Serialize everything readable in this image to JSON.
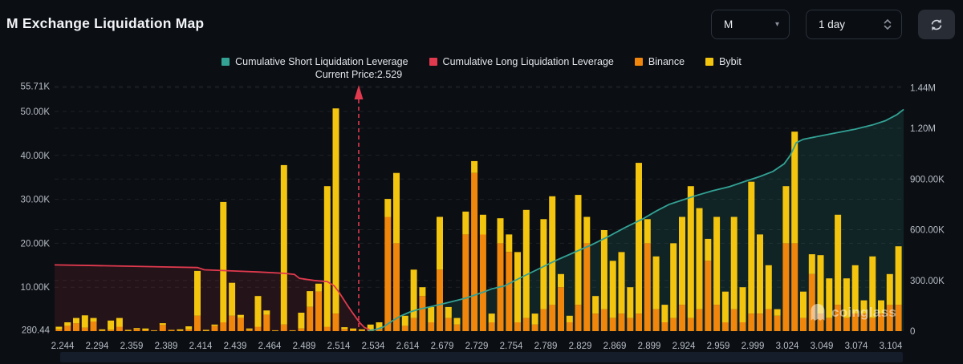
{
  "header": {
    "title": "M Exchange Liquidation Map"
  },
  "controls": {
    "symbol_select": {
      "value": "M"
    },
    "interval_select": {
      "value": "1 day"
    },
    "refresh_button": "refresh"
  },
  "legend": {
    "items": [
      {
        "label": "Cumulative Short Liquidation Leverage",
        "color": "#33a295"
      },
      {
        "label": "Cumulative Long Liquidation Leverage",
        "color": "#e13a4e"
      },
      {
        "label": "Binance",
        "color": "#f0860b"
      },
      {
        "label": "Bybit",
        "color": "#f3c50e"
      }
    ]
  },
  "watermark": {
    "text": "coinglass"
  },
  "chart_data": {
    "type": "bar",
    "title": "M Exchange Liquidation Map",
    "annotation": {
      "label": "Current Price:2.529",
      "price": 2.529
    },
    "colors": {
      "binance": "#f0860b",
      "bybit": "#f3c50e",
      "short_line": "#33a295",
      "long_line": "#e13a4e"
    },
    "y_axis_left": {
      "title": "liquidation value (K USD)",
      "labels": [
        "55.71K",
        "50.00K",
        "40.00K",
        "30.00K",
        "20.00K",
        "10.00K",
        "280.44"
      ],
      "values_k": [
        55.71,
        50,
        40,
        30,
        20,
        10,
        0.28
      ]
    },
    "y_axis_right": {
      "title": "cumulative leverage",
      "labels": [
        "1.44M",
        "1.20M",
        "900.00K",
        "600.00K",
        "300.00K",
        "0"
      ],
      "values_k": [
        1440,
        1200,
        900,
        600,
        300,
        0
      ]
    },
    "x_axis": {
      "labels": [
        "2.244",
        "2.294",
        "2.359",
        "2.389",
        "2.414",
        "2.439",
        "2.464",
        "2.489",
        "2.514",
        "2.534",
        "2.614",
        "2.679",
        "2.729",
        "2.754",
        "2.789",
        "2.829",
        "2.869",
        "2.899",
        "2.924",
        "2.959",
        "2.999",
        "3.024",
        "3.049",
        "3.074",
        "3.104"
      ]
    },
    "bar_series": [
      "Binance",
      "Bybit"
    ],
    "bars_k": [
      [
        0.4,
        0.6
      ],
      [
        1.2,
        0.8
      ],
      [
        1.8,
        1.2
      ],
      [
        0.8,
        2.8
      ],
      [
        2.2,
        0.8
      ],
      [
        0.1,
        0.3
      ],
      [
        0.3,
        2.1
      ],
      [
        1.0,
        2.0
      ],
      [
        0.1,
        0.2
      ],
      [
        0.5,
        0.2
      ],
      [
        0.2,
        0.4
      ],
      [
        0.1,
        0.1
      ],
      [
        1.4,
        0.4
      ],
      [
        0.2,
        0.1
      ],
      [
        0.1,
        0.3
      ],
      [
        0.4,
        0.7
      ],
      [
        3.5,
        10.2
      ],
      [
        0.1,
        0.2
      ],
      [
        1.2,
        0.3
      ],
      [
        2.0,
        27.4
      ],
      [
        3.5,
        7.5
      ],
      [
        3.0,
        0.7
      ],
      [
        0.3,
        0.3
      ],
      [
        1.0,
        7.0
      ],
      [
        3.7,
        1.0
      ],
      [
        0.1,
        0.1
      ],
      [
        1.5,
        36.3
      ],
      [
        0.1,
        0.1
      ],
      [
        0.6,
        3.6
      ],
      [
        5.5,
        3.6
      ],
      [
        9.0,
        1.8
      ],
      [
        1.0,
        32.0
      ],
      [
        4.0,
        46.7
      ],
      [
        0.5,
        0.4
      ],
      [
        0.2,
        0.4
      ],
      [
        0.1,
        0.3
      ],
      [
        0.3,
        1.2
      ],
      [
        0.5,
        1.5
      ],
      [
        26.0,
        4.1
      ],
      [
        20.0,
        16.0
      ],
      [
        1.2,
        2.3
      ],
      [
        3.0,
        11.0
      ],
      [
        8.0,
        2.0
      ],
      [
        2.0,
        3.5
      ],
      [
        14.0,
        12.0
      ],
      [
        3.0,
        2.5
      ],
      [
        1.5,
        1.5
      ],
      [
        22.0,
        5.2
      ],
      [
        36.0,
        2.7
      ],
      [
        22.0,
        4.5
      ],
      [
        2.0,
        2.0
      ],
      [
        20.0,
        5.7
      ],
      [
        18.0,
        4.0
      ],
      [
        2.0,
        16.0
      ],
      [
        3.0,
        24.6
      ],
      [
        1.5,
        2.5
      ],
      [
        5.0,
        20.5
      ],
      [
        6.0,
        24.7
      ],
      [
        10.0,
        3.0
      ],
      [
        2.0,
        1.5
      ],
      [
        6.0,
        25.0
      ],
      [
        20.0,
        6.0
      ],
      [
        4.0,
        4.0
      ],
      [
        5.0,
        18.0
      ],
      [
        3.0,
        13.0
      ],
      [
        4.0,
        14.0
      ],
      [
        3.0,
        7.0
      ],
      [
        4.0,
        34.3
      ],
      [
        20.0,
        5.5
      ],
      [
        5.0,
        12.0
      ],
      [
        2.0,
        4.0
      ],
      [
        3.0,
        17.0
      ],
      [
        6.0,
        20.0
      ],
      [
        3.0,
        30.0
      ],
      [
        5.0,
        23.0
      ],
      [
        16.0,
        5.0
      ],
      [
        6.0,
        20.0
      ],
      [
        2.0,
        7.0
      ],
      [
        5.0,
        21.0
      ],
      [
        2.0,
        8.0
      ],
      [
        4.0,
        30.0
      ],
      [
        4.0,
        18.0
      ],
      [
        5.0,
        10.0
      ],
      [
        3.5,
        1.5
      ],
      [
        20.0,
        13.0
      ],
      [
        20.0,
        25.4
      ],
      [
        3.0,
        6.0
      ],
      [
        13.0,
        4.5
      ],
      [
        4.0,
        13.3
      ],
      [
        3.0,
        9.0
      ],
      [
        6.0,
        20.5
      ],
      [
        3.0,
        9.0
      ],
      [
        4.0,
        11.0
      ],
      [
        4.0,
        3.0
      ],
      [
        3.0,
        14.0
      ],
      [
        4.0,
        3.0
      ],
      [
        6.0,
        7.0
      ],
      [
        6.0,
        13.3
      ]
    ],
    "cumulative_long_k": [
      [
        -0.5,
        392
      ],
      [
        4,
        388
      ],
      [
        8,
        384
      ],
      [
        12,
        380
      ],
      [
        16,
        376
      ],
      [
        16.8,
        363
      ],
      [
        20,
        356
      ],
      [
        23,
        350
      ],
      [
        26,
        342
      ],
      [
        27.2,
        336
      ],
      [
        27.8,
        312
      ],
      [
        29.5,
        300
      ],
      [
        31,
        293
      ],
      [
        31.8,
        268
      ],
      [
        32.3,
        235
      ],
      [
        32.8,
        195
      ],
      [
        33.3,
        155
      ],
      [
        33.8,
        118
      ],
      [
        34.3,
        82
      ],
      [
        34.8,
        48
      ],
      [
        35.3,
        22
      ],
      [
        35.9,
        8
      ]
    ],
    "cumulative_short_k": [
      [
        35.8,
        3
      ],
      [
        36.5,
        8
      ],
      [
        37.5,
        25
      ],
      [
        38.5,
        60
      ],
      [
        39.5,
        90
      ],
      [
        40.5,
        112
      ],
      [
        41.5,
        128
      ],
      [
        43,
        145
      ],
      [
        45,
        170
      ],
      [
        47,
        195
      ],
      [
        49,
        230
      ],
      [
        50,
        250
      ],
      [
        51.5,
        268
      ],
      [
        53.5,
        320
      ],
      [
        55.5,
        370
      ],
      [
        57.5,
        420
      ],
      [
        59.5,
        465
      ],
      [
        61.5,
        510
      ],
      [
        63.5,
        560
      ],
      [
        65.5,
        615
      ],
      [
        67.5,
        665
      ],
      [
        69,
        710
      ],
      [
        70.5,
        750
      ],
      [
        72,
        775
      ],
      [
        73.5,
        800
      ],
      [
        75.5,
        830
      ],
      [
        77.5,
        855
      ],
      [
        79.5,
        890
      ],
      [
        81,
        915
      ],
      [
        82.5,
        945
      ],
      [
        83.8,
        990
      ],
      [
        84.5,
        1040
      ],
      [
        85.2,
        1115
      ],
      [
        86,
        1135
      ],
      [
        88,
        1155
      ],
      [
        90,
        1175
      ],
      [
        92,
        1195
      ],
      [
        94,
        1220
      ],
      [
        95.5,
        1245
      ],
      [
        96.8,
        1280
      ],
      [
        97.6,
        1312
      ]
    ],
    "grid": true,
    "legend_position": "top-center"
  }
}
